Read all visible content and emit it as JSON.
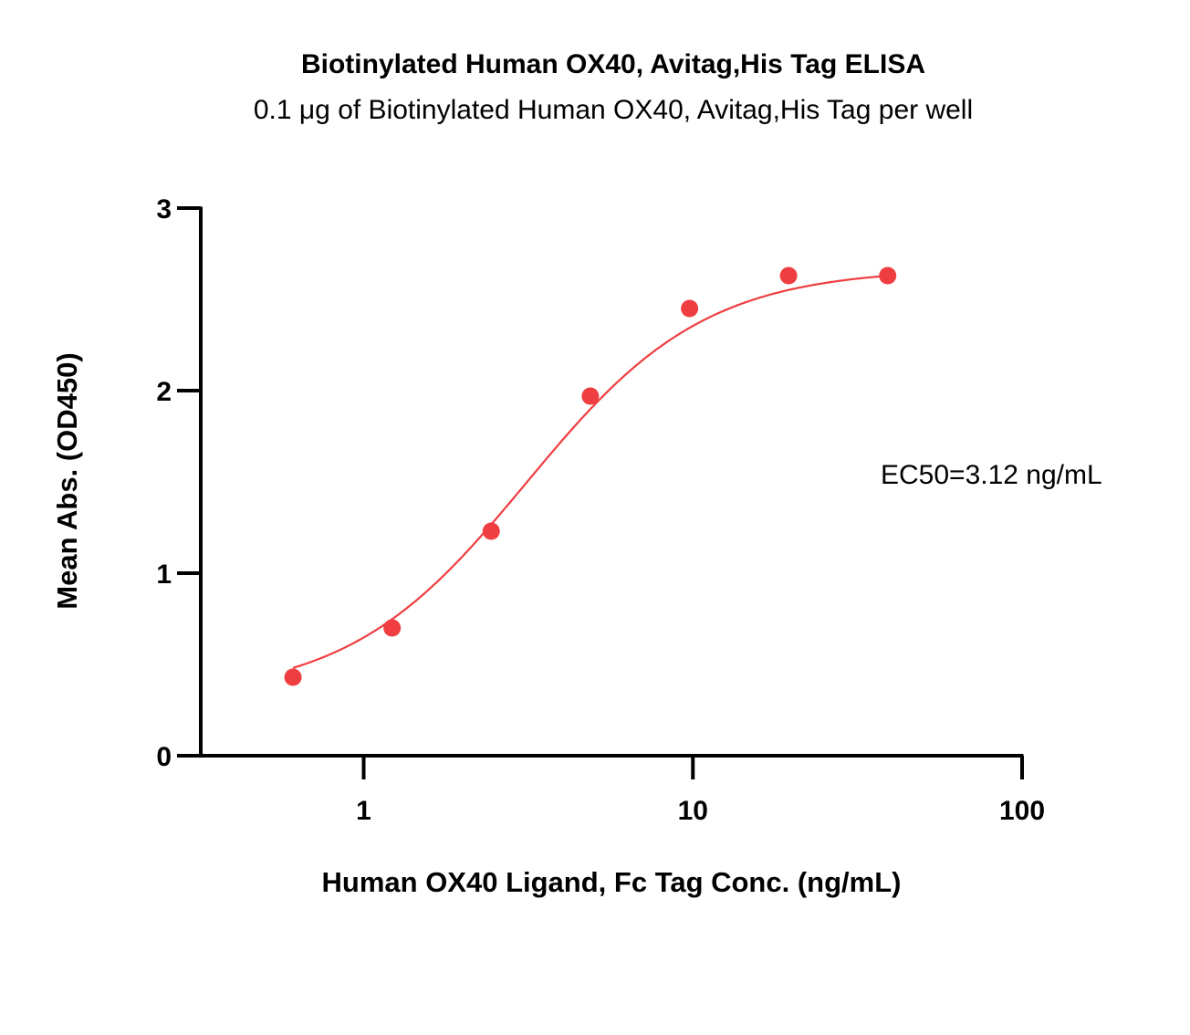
{
  "chart_data": {
    "type": "scatter",
    "title": "Biotinylated Human OX40, Avitag,His Tag ELISA",
    "subtitle": "0.1 μg of Biotinylated Human OX40, Avitag,His Tag per well",
    "xlabel": "Human OX40 Ligand, Fc Tag Conc. (ng/mL)",
    "ylabel": "Mean Abs. (OD450)",
    "x_scale": "log",
    "xlim": [
      0.32,
      100
    ],
    "ylim": [
      0,
      3
    ],
    "x_ticks": [
      1,
      10,
      100
    ],
    "x_tick_labels": [
      "1",
      "10",
      "100"
    ],
    "y_ticks": [
      0,
      1,
      2,
      3
    ],
    "y_tick_labels": [
      "0",
      "1",
      "2",
      "3"
    ],
    "grid": false,
    "legend": "none",
    "series": [
      {
        "color": "#ef3e42",
        "x": [
          0.61,
          1.22,
          2.44,
          4.88,
          9.77,
          19.53,
          39.06
        ],
        "y": [
          0.43,
          0.7,
          1.23,
          1.97,
          2.45,
          2.63,
          2.63
        ]
      }
    ],
    "fit_curve": {
      "model": "4PL",
      "color": "#ef3e42",
      "bottom": 0.32,
      "top": 2.67,
      "ec50": 3.12,
      "hill": 1.6
    },
    "annotations": [
      {
        "text": "EC50=3.12 ng/mL"
      }
    ]
  }
}
